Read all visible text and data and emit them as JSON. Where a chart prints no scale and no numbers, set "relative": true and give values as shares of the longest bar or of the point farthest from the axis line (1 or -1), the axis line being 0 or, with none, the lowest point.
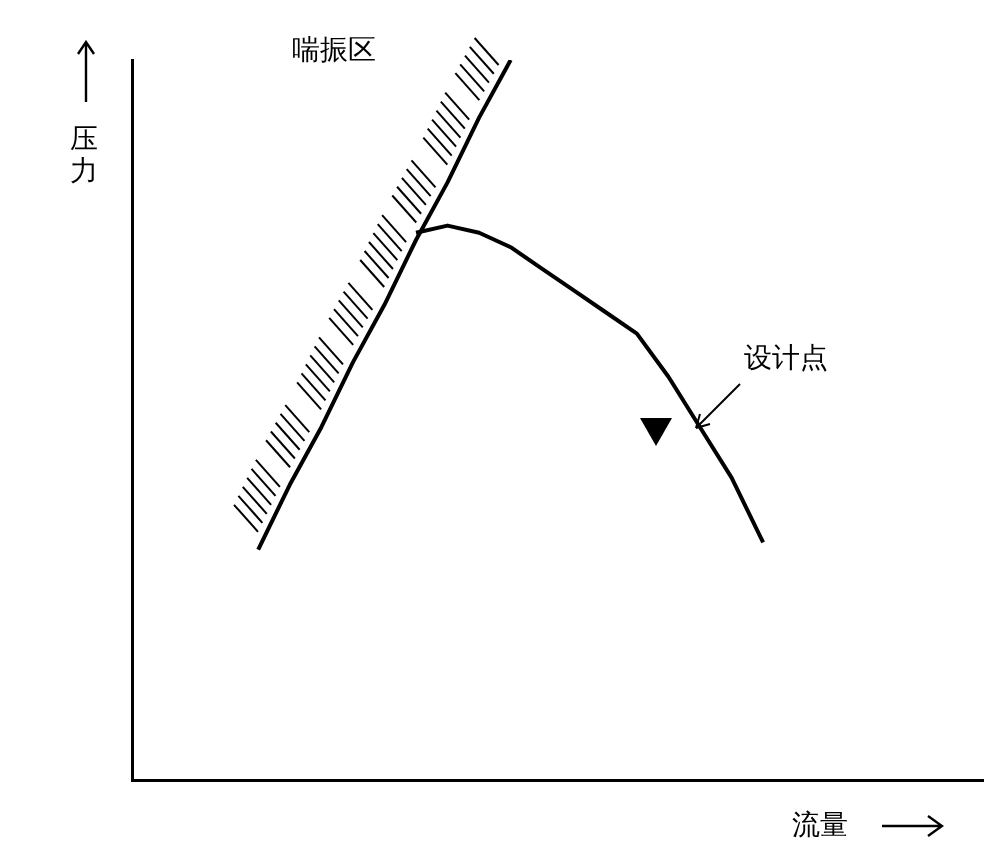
{
  "chart_data": {
    "type": "line",
    "relative": true,
    "xlabel": "流量",
    "ylabel": "压力",
    "legend": false,
    "grid": false,
    "annotations": [
      "喘振区",
      "设计点"
    ],
    "categories": [
      null,
      null,
      null,
      null,
      null,
      null,
      null,
      null,
      null,
      null,
      null,
      null,
      null,
      null,
      null,
      null,
      null,
      null,
      null,
      null,
      null,
      null,
      null,
      null,
      null,
      null,
      null,
      null
    ],
    "series": [
      {
        "color": "#000000",
        "values": [
          null,
          null,
          null,
          null,
          0.32,
          0.41,
          0.49,
          0.58,
          0.66,
          0.75,
          0.83,
          0.92,
          1.0,
          null,
          null,
          null,
          null,
          null,
          null,
          null,
          null,
          null,
          null,
          null,
          null,
          null,
          null,
          null
        ]
      },
      {
        "color": "#000000",
        "values": [
          null,
          null,
          null,
          null,
          null,
          null,
          null,
          null,
          null,
          0.76,
          0.77,
          0.76,
          0.74,
          0.71,
          0.68,
          0.65,
          0.62,
          0.56,
          0.49,
          0.42,
          0.33,
          null,
          null,
          null,
          null,
          null,
          null,
          null
        ]
      }
    ]
  }
}
